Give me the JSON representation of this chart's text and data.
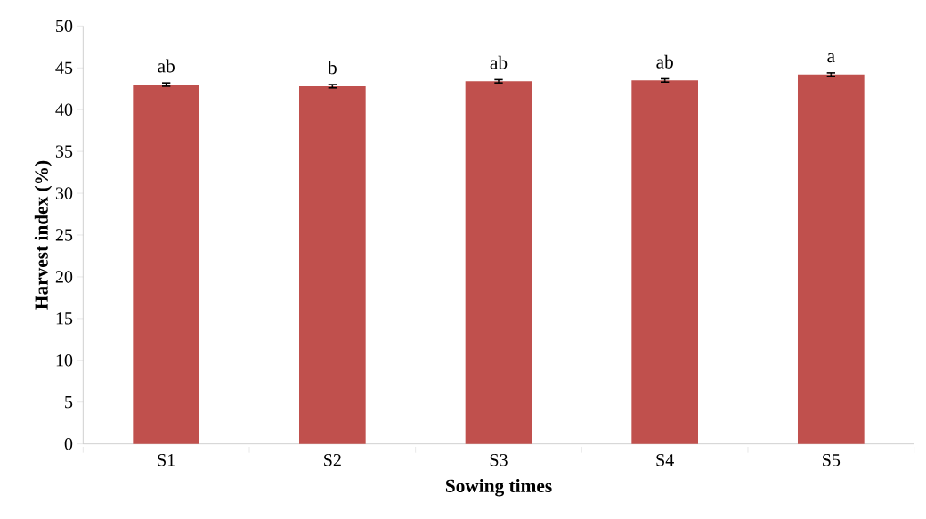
{
  "chart_data": {
    "type": "bar",
    "xlabel": "Sowing times",
    "ylabel": "Harvest index (%)",
    "categories": [
      "S1",
      "S2",
      "S3",
      "S4",
      "S5"
    ],
    "values": [
      43.0,
      42.8,
      43.4,
      43.5,
      44.2
    ],
    "errors": [
      0.2,
      0.2,
      0.2,
      0.2,
      0.2
    ],
    "color": "#c0504d",
    "ylim": [
      0,
      50
    ],
    "yticks": [
      0,
      5,
      10,
      15,
      20,
      25,
      30,
      35,
      40,
      45,
      50
    ],
    "grid": false,
    "annotations": [
      {
        "text": "ab",
        "x": "S1",
        "y": 43.0
      },
      {
        "text": "b",
        "x": "S2",
        "y": 42.8
      },
      {
        "text": "ab",
        "x": "S3",
        "y": 43.4
      },
      {
        "text": "ab",
        "x": "S4",
        "y": 43.5
      },
      {
        "text": "a",
        "x": "S5",
        "y": 44.2
      }
    ]
  }
}
